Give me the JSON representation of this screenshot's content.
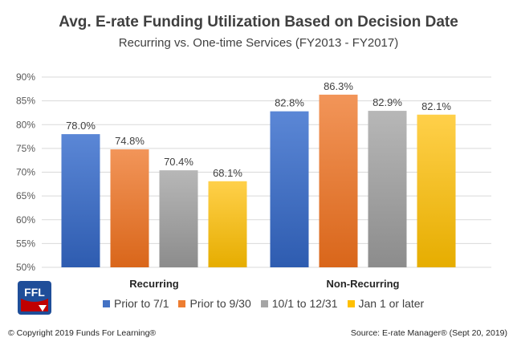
{
  "title": "Avg. E-rate Funding Utilization Based on Decision Date",
  "subtitle": "Recurring  vs. One-time Services (FY2013 - FY2017)",
  "logo_text": "FFL",
  "footer": {
    "copyright": "© Copyright 2019 Funds For Learning®",
    "source": "Source: E-rate Manager® (Sept 20, 2019)"
  },
  "colors": {
    "prior_7_1": "#4472C4",
    "prior_9_30": "#ED7D31",
    "oct_dec": "#A5A5A5",
    "jan_later": "#FFC000",
    "grid": "#D9D9D9",
    "logo_blue": "#1F4E99",
    "logo_red": "#C00000"
  },
  "chart_data": {
    "type": "bar",
    "categories": [
      "Recurring",
      "Non-Recurring"
    ],
    "series": [
      {
        "name": "Prior to 7/1",
        "values": [
          78.0,
          82.8
        ]
      },
      {
        "name": "Prior to 9/30",
        "values": [
          74.8,
          86.3
        ]
      },
      {
        "name": "10/1 to 12/31",
        "values": [
          70.4,
          82.9
        ]
      },
      {
        "name": "Jan 1 or later",
        "values": [
          68.1,
          82.1
        ]
      }
    ],
    "data_labels": [
      [
        "78.0%",
        "82.8%"
      ],
      [
        "74.8%",
        "86.3%"
      ],
      [
        "70.4%",
        "82.9%"
      ],
      [
        "68.1%",
        "82.1%"
      ]
    ],
    "yticks": [
      "50%",
      "55%",
      "60%",
      "65%",
      "70%",
      "75%",
      "80%",
      "85%",
      "90%"
    ],
    "ylim": [
      50,
      90
    ],
    "grid": true,
    "legend_position": "bottom"
  }
}
